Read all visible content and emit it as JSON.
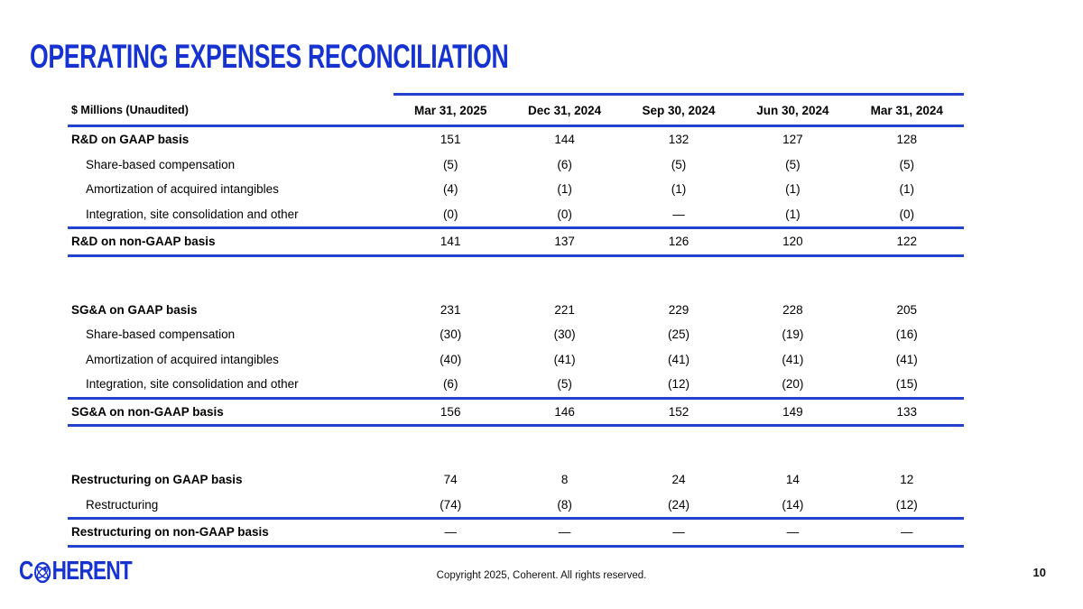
{
  "title": "OPERATING EXPENSES RECONCILIATION",
  "colors": {
    "brand_blue": "#1633d2",
    "rule_blue": "#2343cf"
  },
  "table": {
    "unit_label": "$ Millions (Unaudited)",
    "columns": [
      "Mar 31, 2025",
      "Dec 31, 2024",
      "Sep 30, 2024",
      "Jun 30, 2024",
      "Mar 31, 2024"
    ],
    "sections": [
      {
        "name": "rd",
        "rows": [
          {
            "label": "R&D on GAAP basis",
            "bold": true,
            "indent": false,
            "values": [
              "151",
              "144",
              "132",
              "127",
              "128"
            ],
            "rule_after": false
          },
          {
            "label": "Share-based compensation",
            "bold": false,
            "indent": true,
            "values": [
              "(5)",
              "(6)",
              "(5)",
              "(5)",
              "(5)"
            ],
            "rule_after": false
          },
          {
            "label": "Amortization of acquired intangibles",
            "bold": false,
            "indent": true,
            "values": [
              "(4)",
              "(1)",
              "(1)",
              "(1)",
              "(1)"
            ],
            "rule_after": false
          },
          {
            "label": "Integration, site consolidation and other",
            "bold": false,
            "indent": true,
            "values": [
              "(0)",
              "(0)",
              "—",
              "(1)",
              "(0)"
            ],
            "rule_after": true
          },
          {
            "label": "R&D on non-GAAP basis",
            "bold": true,
            "indent": false,
            "values": [
              "141",
              "137",
              "126",
              "120",
              "122"
            ],
            "rule_after": true
          }
        ]
      },
      {
        "name": "sga",
        "rows": [
          {
            "label": "SG&A on GAAP basis",
            "bold": true,
            "indent": false,
            "values": [
              "231",
              "221",
              "229",
              "228",
              "205"
            ],
            "rule_after": false
          },
          {
            "label": "Share-based compensation",
            "bold": false,
            "indent": true,
            "values": [
              "(30)",
              "(30)",
              "(25)",
              "(19)",
              "(16)"
            ],
            "rule_after": false
          },
          {
            "label": "Amortization of acquired intangibles",
            "bold": false,
            "indent": true,
            "values": [
              "(40)",
              "(41)",
              "(41)",
              "(41)",
              "(41)"
            ],
            "rule_after": false
          },
          {
            "label": "Integration, site consolidation and other",
            "bold": false,
            "indent": true,
            "values": [
              "(6)",
              "(5)",
              "(12)",
              "(20)",
              "(15)"
            ],
            "rule_after": true
          },
          {
            "label": "SG&A on non-GAAP basis",
            "bold": true,
            "indent": false,
            "values": [
              "156",
              "146",
              "152",
              "149",
              "133"
            ],
            "rule_after": true
          }
        ]
      },
      {
        "name": "restructuring",
        "rows": [
          {
            "label": "Restructuring on GAAP basis",
            "bold": true,
            "indent": false,
            "values": [
              "74",
              "8",
              "24",
              "14",
              "12"
            ],
            "rule_after": false
          },
          {
            "label": "Restructuring",
            "bold": false,
            "indent": true,
            "values": [
              "(74)",
              "(8)",
              "(24)",
              "(14)",
              "(12)"
            ],
            "rule_after": true
          },
          {
            "label": "Restructuring on non-GAAP basis",
            "bold": true,
            "indent": false,
            "values": [
              "—",
              "—",
              "—",
              "—",
              "—"
            ],
            "rule_after": true
          }
        ]
      }
    ]
  },
  "footer": {
    "logo_prefix": "C",
    "logo_suffix": "HERENT",
    "copyright": "Copyright 2025, Coherent. All rights reserved.",
    "page_number": "10"
  }
}
